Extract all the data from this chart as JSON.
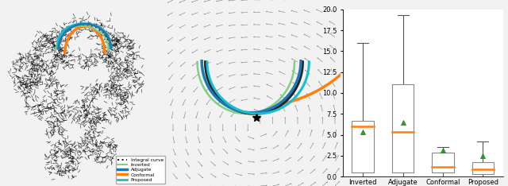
{
  "boxplot": {
    "categories": [
      "Inverted",
      "Adjugate",
      "Conformal",
      "Proposed"
    ],
    "medians": [
      6.0,
      5.3,
      1.2,
      0.9
    ],
    "q1": [
      0.5,
      0.5,
      0.5,
      0.3
    ],
    "q3": [
      6.7,
      11.0,
      2.9,
      1.7
    ],
    "whisker_low": [
      0.05,
      0.05,
      0.05,
      0.05
    ],
    "whisker_high": [
      16.0,
      19.3,
      3.5,
      4.2
    ],
    "means": [
      5.3,
      6.5,
      3.2,
      2.5
    ],
    "ylim": [
      0,
      20.0
    ],
    "yticks": [
      0.0,
      2.5,
      5.0,
      7.5,
      10.0,
      12.5,
      15.0,
      17.5,
      20.0
    ],
    "mean_color": "#2ca02c",
    "median_color": "#ff7f0e",
    "box_color": "#888888",
    "whisker_color": "#555555"
  },
  "legend_labels": [
    "Integral curve",
    "Inverted",
    "Adjugate",
    "Conformal",
    "Proposed"
  ],
  "legend_colors": [
    "#222222",
    "#80d080",
    "#1f77b4",
    "#ff7f0e",
    "#17becf"
  ],
  "legend_styles": [
    "dotted",
    "solid",
    "solid",
    "solid",
    "solid"
  ],
  "curve_linewidths": [
    1.5,
    1.5,
    2.5,
    2.5,
    2.0
  ],
  "bg_color": "#f2f2f2",
  "panel_bg": "#ffffff"
}
